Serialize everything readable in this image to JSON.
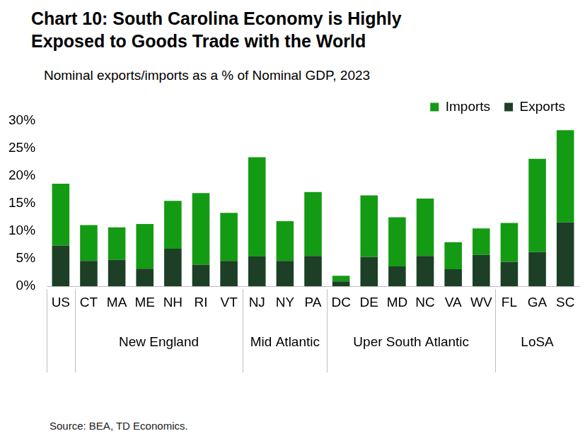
{
  "chart_data": {
    "type": "bar",
    "title": "Chart 10: South Carolina Economy is Highly Exposed to Goods Trade with the World",
    "subtitle": "Nominal exports/imports as a % of Nominal GDP, 2023",
    "source": "Source: BEA, TD Economics.",
    "categories": [
      "US",
      "CT",
      "MA",
      "ME",
      "NH",
      "RI",
      "VT",
      "NJ",
      "NY",
      "PA",
      "DC",
      "DE",
      "MD",
      "NC",
      "VA",
      "WV",
      "FL",
      "GA",
      "SC"
    ],
    "groups": [
      {
        "name": "New England",
        "categories": [
          "CT",
          "MA",
          "ME",
          "NH",
          "RI",
          "VT"
        ]
      },
      {
        "name": "Mid Atlantic",
        "categories": [
          "NJ",
          "NY",
          "PA"
        ]
      },
      {
        "name": "Uper South Atlantic",
        "categories": [
          "DC",
          "DE",
          "MD",
          "NC",
          "VA",
          "WV"
        ]
      },
      {
        "name": "LoSA",
        "categories": [
          "FL",
          "GA",
          "SC"
        ]
      }
    ],
    "series": [
      {
        "name": "Exports",
        "color": "#1c3f26",
        "values": [
          7.4,
          4.6,
          4.8,
          3.2,
          6.8,
          3.9,
          4.6,
          5.4,
          4.6,
          5.5,
          0.9,
          5.3,
          3.6,
          5.5,
          3.1,
          5.7,
          4.4,
          6.2,
          11.6
        ]
      },
      {
        "name": "Imports",
        "color": "#149b14",
        "values": [
          11.2,
          6.5,
          5.9,
          8.1,
          8.7,
          13.0,
          8.7,
          18.0,
          7.2,
          11.6,
          1.0,
          11.2,
          8.9,
          10.4,
          4.9,
          4.8,
          7.1,
          16.9,
          16.7
        ]
      }
    ],
    "stacked": true,
    "ylim": [
      0,
      30
    ],
    "yticks": [
      {
        "value": 0,
        "label": "0%"
      },
      {
        "value": 5,
        "label": "5%"
      },
      {
        "value": 10,
        "label": "10%"
      },
      {
        "value": 15,
        "label": "15%"
      },
      {
        "value": 20,
        "label": "20%"
      },
      {
        "value": 25,
        "label": "25%"
      },
      {
        "value": 30,
        "label": "30%"
      }
    ],
    "grid": false,
    "legend": "top"
  }
}
